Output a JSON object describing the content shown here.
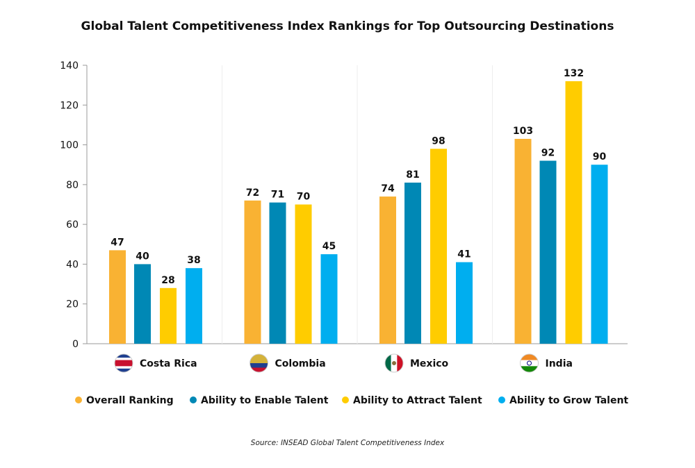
{
  "chart_data": {
    "type": "bar",
    "title": "Global Talent Competitiveness Index Rankings for Top Outsourcing Destinations",
    "categories": [
      "Costa Rica",
      "Colombia",
      "Mexico",
      "India"
    ],
    "category_icons": [
      "costa-rica-flag-icon",
      "colombia-flag-icon",
      "mexico-flag-icon",
      "india-flag-icon"
    ],
    "series": [
      {
        "name": "Overall Ranking",
        "color": "#F9B233",
        "values": [
          47,
          72,
          74,
          103
        ]
      },
      {
        "name": "Ability to Enable Talent",
        "color": "#0088B5",
        "values": [
          40,
          71,
          81,
          92
        ]
      },
      {
        "name": "Ability to Attract Talent",
        "color": "#FFCC00",
        "values": [
          28,
          70,
          98,
          132
        ]
      },
      {
        "name": "Ability to Grow Talent",
        "color": "#00AEEF",
        "values": [
          38,
          45,
          41,
          90
        ]
      }
    ],
    "ylim": [
      0,
      140
    ],
    "yticks": [
      0,
      20,
      40,
      60,
      80,
      100,
      120,
      140
    ],
    "xlabel": "",
    "ylabel": "",
    "grid": "vertical group separators only",
    "legend_position": "bottom",
    "data_labels": true
  },
  "source": "Source: INSEAD Global Talent Competitiveness Index"
}
